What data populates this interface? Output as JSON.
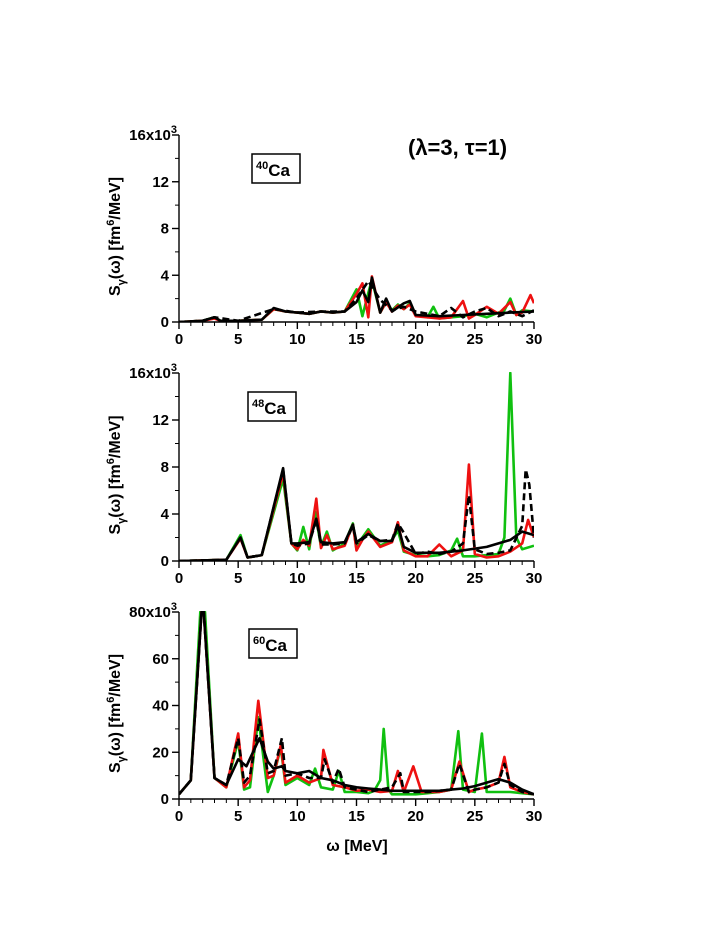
{
  "figure": {
    "title": "(λ=3, τ=1)",
    "xlabel": "ω [MeV]",
    "ylabel_main": "S",
    "ylabel_sub": "γ",
    "ylabel_rest": "(ω) [fm",
    "ylabel_sup": "6",
    "ylabel_end": "/MeV]"
  },
  "colors": {
    "green": "#10c010",
    "red": "#ee1111",
    "black": "#000000"
  },
  "chart_data": [
    {
      "type": "line",
      "nucleus_mass": "40",
      "nucleus_symbol": "Ca",
      "xlim": [
        0,
        30
      ],
      "ylim": [
        0,
        16000
      ],
      "xticks": [
        "0",
        "5",
        "10",
        "15",
        "20",
        "25",
        "30"
      ],
      "yticks": [
        "0",
        "4",
        "8",
        "12",
        "16x10"
      ],
      "ytick_top_exp": "3",
      "series": [
        {
          "color": "green",
          "style": "solid",
          "x": [
            0,
            2,
            3,
            3.5,
            5,
            7,
            8,
            9,
            10,
            11,
            12,
            13,
            14,
            15,
            15.5,
            16,
            16.3,
            17,
            17.5,
            18,
            18.5,
            19,
            19.5,
            20,
            21,
            21.5,
            22,
            23,
            24,
            25,
            26,
            27,
            27.5,
            28,
            28.5,
            29,
            30
          ],
          "y": [
            0,
            100,
            400,
            100,
            100,
            200,
            1100,
            900,
            800,
            700,
            900,
            800,
            900,
            2800,
            500,
            2500,
            3600,
            800,
            1700,
            1000,
            1500,
            1100,
            1600,
            600,
            400,
            1300,
            300,
            400,
            500,
            700,
            400,
            800,
            1000,
            2000,
            600,
            1000,
            900
          ]
        },
        {
          "color": "red",
          "style": "solid",
          "x": [
            0,
            2,
            3,
            3.5,
            5,
            7,
            8,
            9,
            10,
            11,
            12,
            13,
            14,
            15,
            15.5,
            16,
            16.3,
            17,
            17.5,
            18,
            18.5,
            19,
            19.5,
            20,
            21,
            22,
            23,
            24,
            24.5,
            25,
            26,
            27,
            28,
            28.5,
            29,
            29.7,
            30
          ],
          "y": [
            0,
            100,
            300,
            100,
            100,
            200,
            1100,
            900,
            800,
            700,
            900,
            800,
            900,
            2400,
            3300,
            400,
            3900,
            800,
            1700,
            900,
            1400,
            1100,
            1500,
            500,
            400,
            300,
            400,
            1800,
            300,
            600,
            1300,
            700,
            1700,
            600,
            800,
            2300,
            1600
          ]
        },
        {
          "color": "black",
          "style": "dashed",
          "x": [
            0,
            2,
            3,
            5,
            8,
            10,
            12,
            14,
            15,
            16,
            17,
            18,
            19,
            20,
            21,
            22,
            23,
            24,
            25,
            26,
            27,
            28,
            29,
            30
          ],
          "y": [
            0,
            100,
            400,
            100,
            1100,
            800,
            900,
            900,
            2000,
            3500,
            1900,
            1000,
            1300,
            900,
            700,
            500,
            1200,
            400,
            900,
            1200,
            500,
            900,
            500,
            1000
          ]
        },
        {
          "color": "black",
          "style": "solid",
          "x": [
            0,
            2,
            3,
            3.5,
            5,
            7,
            8,
            9,
            10,
            11,
            12,
            13,
            14,
            15,
            15.5,
            16,
            16.3,
            17,
            17.5,
            18,
            19,
            19.5,
            20,
            22,
            24,
            26,
            28,
            30
          ],
          "y": [
            0,
            100,
            400,
            100,
            100,
            200,
            1200,
            900,
            800,
            700,
            900,
            800,
            900,
            1700,
            2700,
            1700,
            3800,
            800,
            2000,
            900,
            1600,
            1800,
            600,
            500,
            600,
            700,
            800,
            900
          ]
        }
      ]
    },
    {
      "type": "line",
      "nucleus_mass": "48",
      "nucleus_symbol": "Ca",
      "xlim": [
        0,
        30
      ],
      "ylim": [
        0,
        16000
      ],
      "xticks": [
        "0",
        "5",
        "10",
        "15",
        "20",
        "25",
        "30"
      ],
      "yticks": [
        "0",
        "4",
        "8",
        "12",
        "16x10"
      ],
      "ytick_top_exp": "3",
      "series": [
        {
          "color": "green",
          "style": "solid",
          "x": [
            0,
            4,
            5.2,
            5.8,
            7,
            8.8,
            9.5,
            10,
            10.5,
            11,
            11.5,
            12,
            12.5,
            13,
            14,
            14.7,
            15,
            15.5,
            16,
            17,
            18,
            18.5,
            19,
            20,
            21,
            22,
            23,
            23.5,
            24,
            25,
            26,
            27,
            27.5,
            28,
            28.5,
            29,
            30
          ],
          "y": [
            0,
            100,
            2200,
            300,
            500,
            7000,
            1500,
            900,
            2900,
            1000,
            4200,
            1200,
            2500,
            900,
            1500,
            3200,
            1000,
            2000,
            2700,
            1300,
            1800,
            2600,
            800,
            500,
            400,
            500,
            900,
            1900,
            400,
            400,
            500,
            600,
            2000,
            16000,
            2000,
            1000,
            1300
          ]
        },
        {
          "color": "red",
          "style": "solid",
          "x": [
            0,
            4,
            5.2,
            5.8,
            7,
            8.8,
            9.5,
            10,
            10.5,
            11,
            11.6,
            12,
            12.5,
            13,
            14,
            14.7,
            15,
            15.5,
            16,
            17,
            18,
            18.5,
            19,
            20,
            21,
            22,
            23,
            24,
            24.5,
            25,
            26,
            27,
            28,
            29,
            29.5,
            30
          ],
          "y": [
            0,
            100,
            1900,
            300,
            500,
            7500,
            1500,
            1000,
            1800,
            1300,
            5300,
            1100,
            2200,
            1000,
            1300,
            3100,
            900,
            1800,
            2500,
            1200,
            1600,
            3300,
            900,
            400,
            400,
            1400,
            400,
            900,
            8200,
            600,
            300,
            400,
            800,
            1500,
            3500,
            2000
          ]
        },
        {
          "color": "black",
          "style": "dashed",
          "x": [
            0,
            4,
            5.2,
            5.8,
            7,
            8.8,
            9.5,
            10,
            11,
            11.6,
            12,
            13,
            14,
            14.7,
            15,
            16,
            17,
            18,
            18.5,
            19,
            20,
            21,
            22,
            23,
            24,
            24.5,
            25,
            26,
            27,
            28,
            29,
            29.3,
            29.6,
            30
          ],
          "y": [
            0,
            100,
            2000,
            300,
            500,
            7800,
            1500,
            1300,
            1500,
            3500,
            1400,
            1400,
            1500,
            3000,
            1500,
            2200,
            1700,
            1800,
            3200,
            2400,
            600,
            800,
            600,
            800,
            1500,
            5600,
            1000,
            600,
            700,
            900,
            3000,
            7800,
            6500,
            2000
          ]
        },
        {
          "color": "black",
          "style": "solid",
          "x": [
            0,
            4,
            5.2,
            5.8,
            7,
            8.8,
            9.5,
            10,
            11,
            11.6,
            12,
            13,
            14,
            14.7,
            15,
            16,
            17,
            18,
            18.5,
            19,
            20,
            22,
            24,
            26,
            28,
            29,
            30
          ],
          "y": [
            0,
            100,
            2000,
            300,
            500,
            7900,
            1500,
            1500,
            1600,
            3600,
            1600,
            1500,
            1600,
            3100,
            1600,
            2300,
            1700,
            1700,
            3000,
            1200,
            700,
            700,
            900,
            1200,
            1800,
            2500,
            2200
          ]
        }
      ]
    },
    {
      "type": "line",
      "nucleus_mass": "60",
      "nucleus_symbol": "Ca",
      "xlim": [
        0,
        30
      ],
      "ylim": [
        0,
        80000
      ],
      "xticks": [
        "0",
        "5",
        "10",
        "15",
        "20",
        "25",
        "30"
      ],
      "yticks": [
        "0",
        "20",
        "40",
        "60",
        "80x10"
      ],
      "ytick_top_exp": "3",
      "series": [
        {
          "color": "green",
          "style": "solid",
          "x": [
            0,
            1,
            1.8,
            2,
            2.2,
            3,
            4,
            5,
            5.5,
            6,
            6.7,
            7.5,
            8,
            8.6,
            9,
            10,
            11,
            11.5,
            12,
            13,
            13.5,
            14,
            15,
            16,
            16.5,
            17,
            17.3,
            17.7,
            18,
            19,
            20,
            21,
            22,
            23,
            23.6,
            24,
            25,
            25.6,
            26,
            27,
            28,
            29,
            30
          ],
          "y": [
            2000,
            8000,
            80000,
            80000,
            80000,
            9000,
            5000,
            25000,
            4000,
            5000,
            35000,
            3000,
            10000,
            22000,
            6000,
            9000,
            6000,
            13000,
            5000,
            4000,
            12000,
            3000,
            3000,
            2500,
            3500,
            8000,
            30000,
            4000,
            2000,
            2000,
            2000,
            2500,
            3000,
            4000,
            29000,
            4000,
            3000,
            28000,
            3000,
            3000,
            3000,
            2500,
            2000
          ]
        },
        {
          "color": "red",
          "style": "solid",
          "x": [
            0,
            1,
            1.9,
            2,
            2.1,
            3,
            4,
            5,
            5.5,
            6,
            6.7,
            7.5,
            8,
            8.6,
            9,
            10,
            11,
            12,
            12.2,
            13,
            14,
            15,
            16,
            17,
            18,
            18.5,
            19,
            19.8,
            20.5,
            21,
            22,
            23,
            23.7,
            24.5,
            25,
            26,
            27,
            27.5,
            28,
            29,
            30
          ],
          "y": [
            2000,
            8000,
            80000,
            80000,
            80000,
            9000,
            5000,
            28000,
            5000,
            8000,
            42000,
            9000,
            10000,
            23000,
            7000,
            10000,
            7000,
            9000,
            21000,
            6000,
            5000,
            3500,
            4000,
            3000,
            3500,
            12000,
            3000,
            14000,
            3000,
            3000,
            3000,
            4000,
            16000,
            3000,
            4000,
            5000,
            7000,
            18000,
            5000,
            3000,
            2000
          ]
        },
        {
          "color": "black",
          "style": "dashed",
          "x": [
            0,
            1,
            1.9,
            2,
            2.1,
            3,
            4,
            5,
            5.5,
            6,
            6.8,
            7.5,
            8,
            8.7,
            9,
            10,
            11,
            12,
            12.3,
            13,
            13.5,
            14,
            15,
            16,
            17,
            18,
            18.7,
            19,
            20,
            21,
            22,
            23,
            23.7,
            24.5,
            25,
            26,
            27,
            27.5,
            28,
            29,
            30
          ],
          "y": [
            2000,
            8000,
            80000,
            80000,
            80000,
            9000,
            6000,
            26000,
            7000,
            10000,
            34000,
            11000,
            12000,
            26000,
            10000,
            11000,
            9000,
            9000,
            17000,
            7000,
            13000,
            5000,
            4000,
            3000,
            4000,
            5000,
            11000,
            3000,
            3000,
            3000,
            3500,
            4000,
            15000,
            3000,
            4000,
            5000,
            7000,
            15000,
            6000,
            3000,
            2000
          ]
        },
        {
          "color": "black",
          "style": "solid",
          "x": [
            0,
            1,
            1.9,
            2,
            2.1,
            3,
            4,
            5,
            5.7,
            6.8,
            7.5,
            8,
            8.7,
            9,
            10,
            11,
            12,
            13,
            14,
            15,
            16,
            17,
            18,
            19,
            20,
            21,
            22,
            23,
            24,
            25,
            26,
            27,
            28,
            29,
            30
          ],
          "y": [
            2000,
            8000,
            80000,
            80000,
            80000,
            9000,
            6000,
            17000,
            14000,
            26000,
            16000,
            13000,
            14000,
            12000,
            11000,
            12000,
            9000,
            8000,
            6000,
            5000,
            4500,
            4000,
            3500,
            3500,
            3500,
            3500,
            3500,
            4000,
            4500,
            5500,
            7000,
            8500,
            7000,
            4000,
            2000
          ]
        }
      ]
    }
  ]
}
